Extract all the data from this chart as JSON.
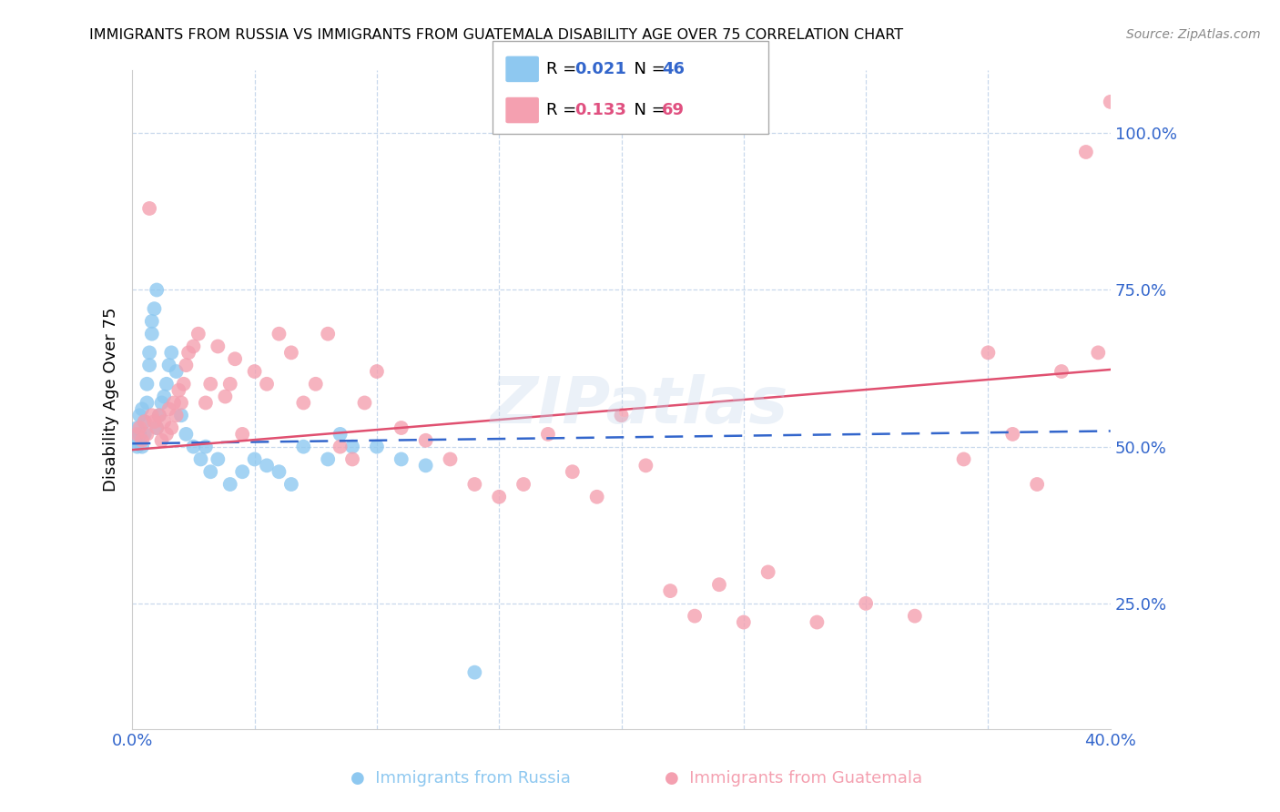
{
  "title": "IMMIGRANTS FROM RUSSIA VS IMMIGRANTS FROM GUATEMALA DISABILITY AGE OVER 75 CORRELATION CHART",
  "source": "Source: ZipAtlas.com",
  "ylabel": "Disability Age Over 75",
  "color_russia": "#8EC8F0",
  "color_russia_line": "#3366CC",
  "color_guatemala": "#F4A0B0",
  "color_guatemala_line": "#E05070",
  "color_axis_text": "#3366CC",
  "xmin": 0.0,
  "xmax": 0.4,
  "ymin": 0.05,
  "ymax": 1.1,
  "russia_x": [
    0.001,
    0.002,
    0.002,
    0.003,
    0.003,
    0.004,
    0.004,
    0.005,
    0.005,
    0.006,
    0.006,
    0.007,
    0.007,
    0.008,
    0.008,
    0.009,
    0.01,
    0.01,
    0.011,
    0.012,
    0.013,
    0.014,
    0.015,
    0.016,
    0.018,
    0.02,
    0.022,
    0.025,
    0.028,
    0.03,
    0.032,
    0.035,
    0.04,
    0.045,
    0.05,
    0.055,
    0.06,
    0.065,
    0.07,
    0.08,
    0.085,
    0.09,
    0.1,
    0.11,
    0.12,
    0.14
  ],
  "russia_y": [
    0.51,
    0.5,
    0.53,
    0.52,
    0.55,
    0.5,
    0.56,
    0.54,
    0.52,
    0.57,
    0.6,
    0.63,
    0.65,
    0.68,
    0.7,
    0.72,
    0.75,
    0.53,
    0.55,
    0.57,
    0.58,
    0.6,
    0.63,
    0.65,
    0.62,
    0.55,
    0.52,
    0.5,
    0.48,
    0.5,
    0.46,
    0.48,
    0.44,
    0.46,
    0.48,
    0.47,
    0.46,
    0.44,
    0.5,
    0.48,
    0.52,
    0.5,
    0.5,
    0.48,
    0.47,
    0.14
  ],
  "guatemala_x": [
    0.002,
    0.003,
    0.004,
    0.005,
    0.006,
    0.007,
    0.008,
    0.009,
    0.01,
    0.011,
    0.012,
    0.013,
    0.014,
    0.015,
    0.016,
    0.017,
    0.018,
    0.019,
    0.02,
    0.021,
    0.022,
    0.023,
    0.025,
    0.027,
    0.03,
    0.032,
    0.035,
    0.038,
    0.04,
    0.042,
    0.045,
    0.05,
    0.055,
    0.06,
    0.065,
    0.07,
    0.075,
    0.08,
    0.085,
    0.09,
    0.095,
    0.1,
    0.11,
    0.12,
    0.13,
    0.14,
    0.15,
    0.16,
    0.17,
    0.18,
    0.19,
    0.2,
    0.21,
    0.22,
    0.23,
    0.24,
    0.25,
    0.26,
    0.28,
    0.3,
    0.32,
    0.34,
    0.35,
    0.36,
    0.37,
    0.38,
    0.39,
    0.395,
    0.4
  ],
  "guatemala_y": [
    0.52,
    0.53,
    0.51,
    0.54,
    0.52,
    0.88,
    0.55,
    0.54,
    0.53,
    0.55,
    0.51,
    0.54,
    0.52,
    0.56,
    0.53,
    0.57,
    0.55,
    0.59,
    0.57,
    0.6,
    0.63,
    0.65,
    0.66,
    0.68,
    0.57,
    0.6,
    0.66,
    0.58,
    0.6,
    0.64,
    0.52,
    0.62,
    0.6,
    0.68,
    0.65,
    0.57,
    0.6,
    0.68,
    0.5,
    0.48,
    0.57,
    0.62,
    0.53,
    0.51,
    0.48,
    0.44,
    0.42,
    0.44,
    0.52,
    0.46,
    0.42,
    0.55,
    0.47,
    0.27,
    0.23,
    0.28,
    0.22,
    0.3,
    0.22,
    0.25,
    0.23,
    0.48,
    0.65,
    0.52,
    0.44,
    0.62,
    0.97,
    0.65,
    1.05
  ]
}
